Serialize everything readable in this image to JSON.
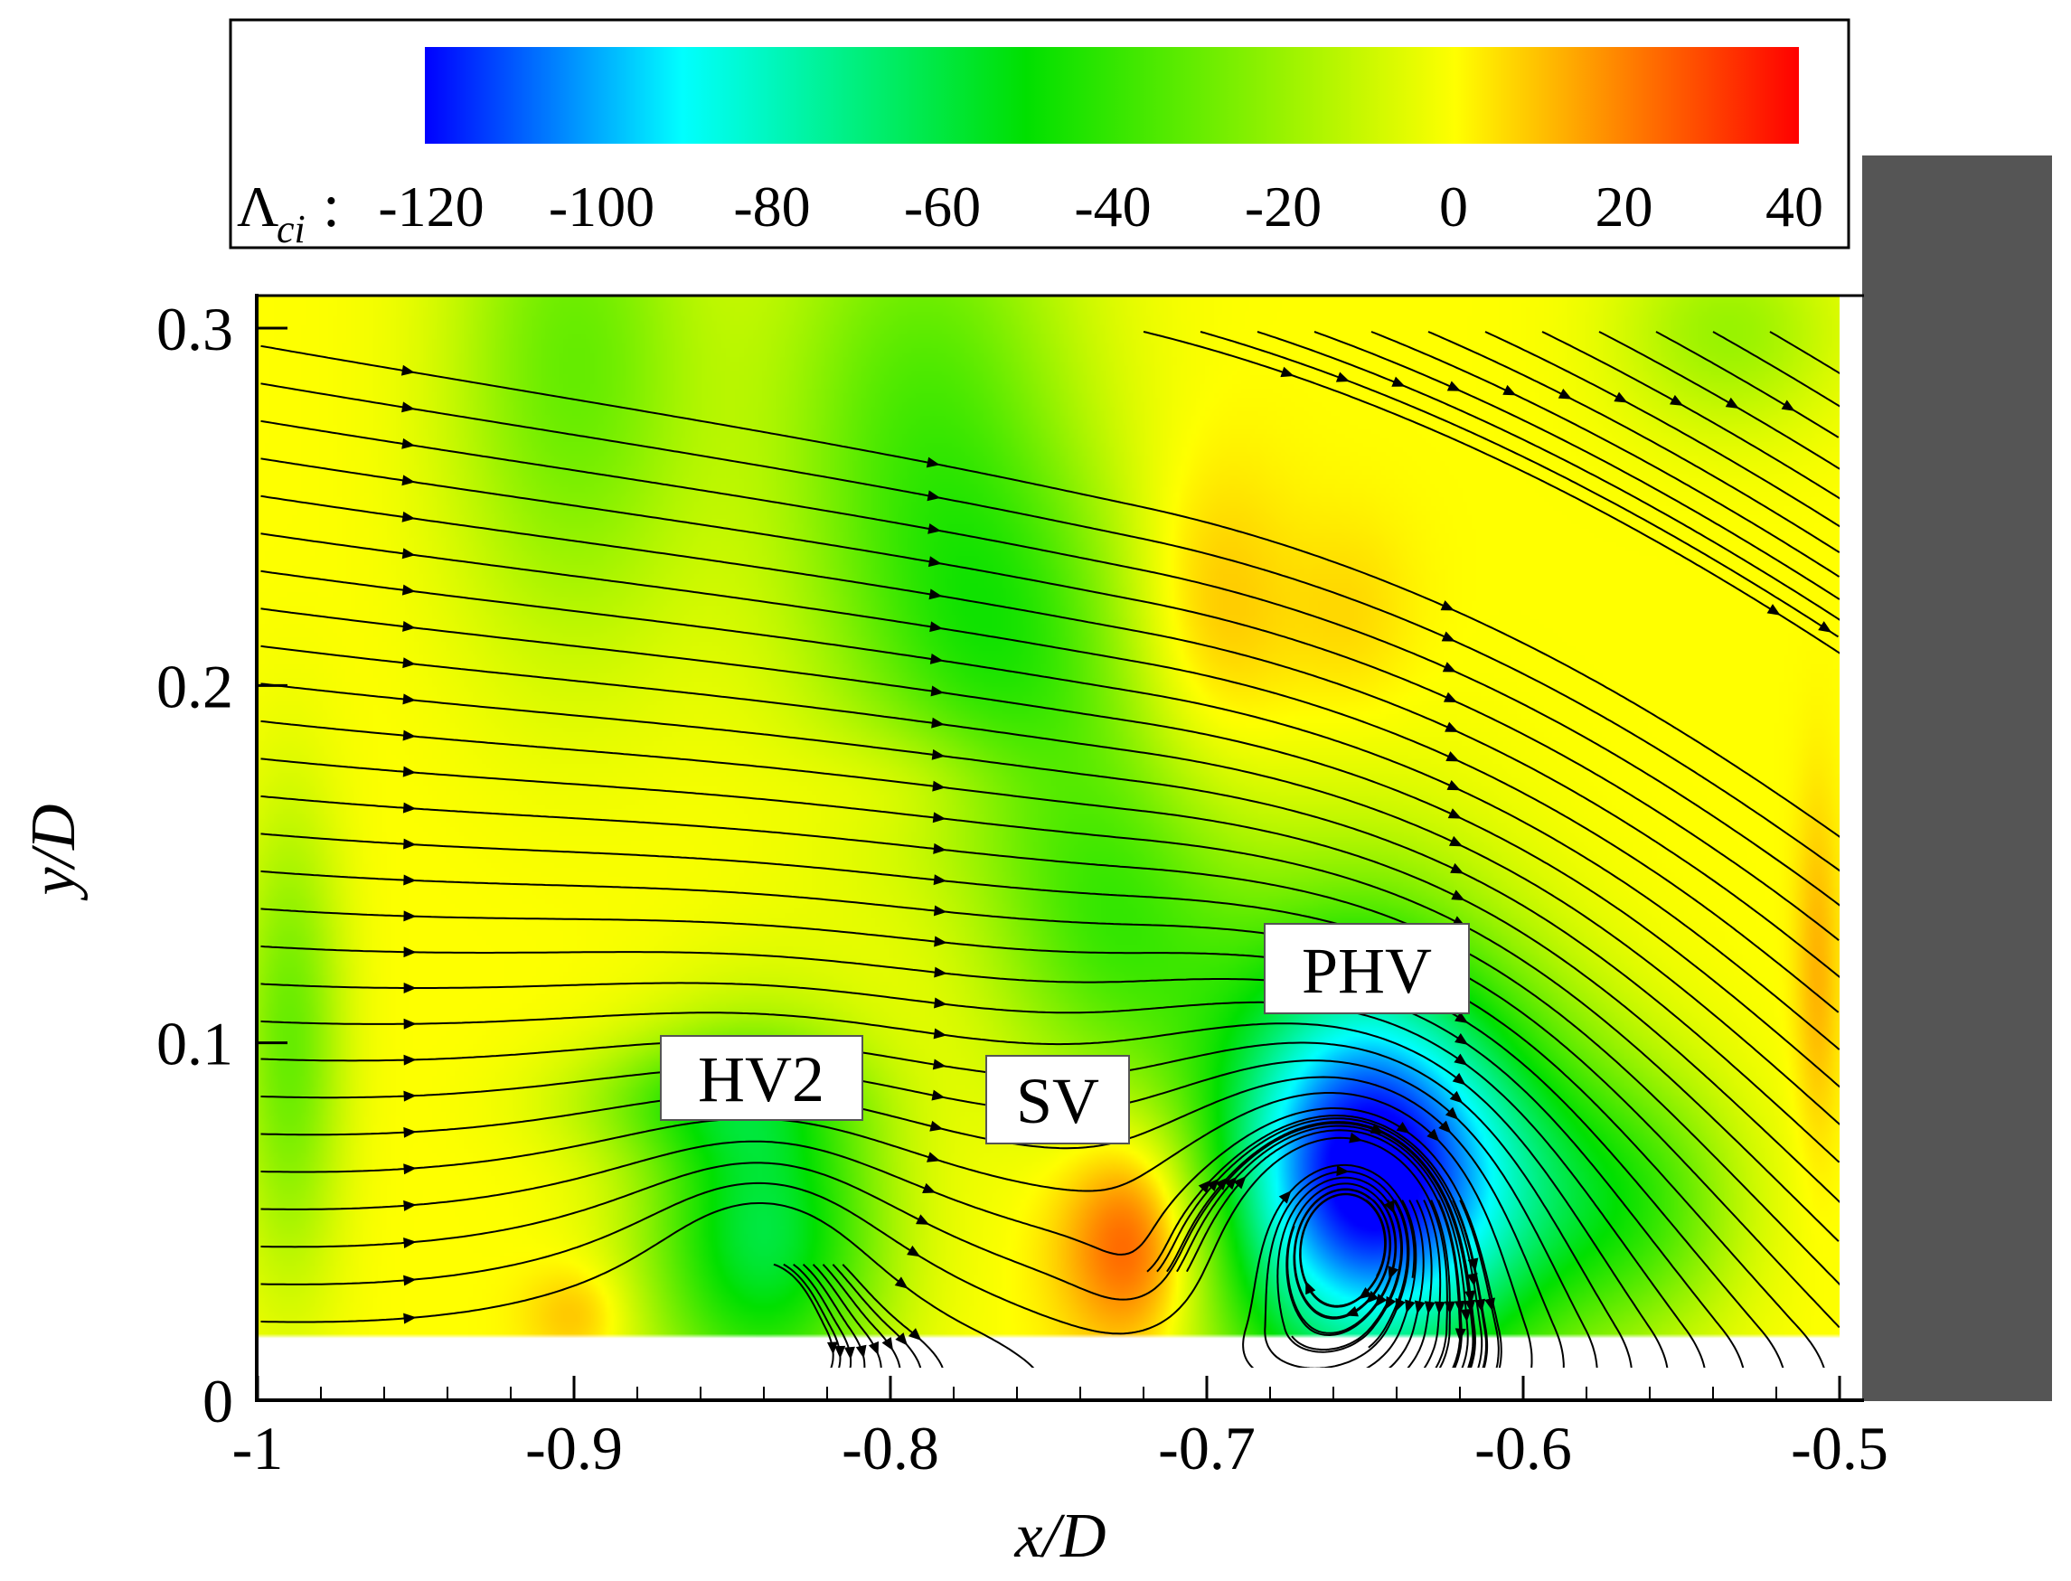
{
  "chart_data": {
    "type": "heatmap",
    "title": "",
    "xlabel": "x/D",
    "ylabel": "y/D",
    "xlim": [
      -1,
      -0.5
    ],
    "ylim": [
      0,
      0.3
    ],
    "x_ticks": [
      -1,
      -0.9,
      -0.8,
      -0.7,
      -0.6,
      -0.5
    ],
    "x_tick_labels": [
      "-1",
      "-0.9",
      "-0.8",
      "-0.7",
      "-0.6",
      "-0.5"
    ],
    "y_ticks": [
      0,
      0.1,
      0.2,
      0.3
    ],
    "y_tick_labels": [
      "0",
      "0.1",
      "0.2",
      "0.3"
    ],
    "colorbar": {
      "variable": "Λ",
      "subscript": "ci",
      "range": [
        -120,
        40
      ],
      "ticks": [
        -120,
        -100,
        -80,
        -60,
        -40,
        -20,
        0,
        20,
        40
      ],
      "tick_labels": [
        "-120",
        "-100",
        "-80",
        "-60",
        "-40",
        "-20",
        "0",
        "20",
        "40"
      ],
      "colors": [
        "#0000ff",
        "#00ffff",
        "#00e000",
        "#ffff00",
        "#ff0000"
      ]
    },
    "background_value": 0,
    "vortices": [
      {
        "label": "HV2",
        "x": -0.84,
        "y": 0.038,
        "swirl": -60,
        "radius": 0.035
      },
      {
        "label": "SV",
        "x": -0.722,
        "y": 0.036,
        "swirl": 35,
        "radius": 0.022
      },
      {
        "label": "PHV",
        "x": -0.652,
        "y": 0.056,
        "swirl": -120,
        "radius": 0.045
      }
    ],
    "scalar_blobs": [
      {
        "x": -0.9,
        "y": 0.28,
        "v": -30,
        "sx": 0.028,
        "sy": 0.055
      },
      {
        "x": -0.79,
        "y": 0.26,
        "v": -35,
        "sx": 0.035,
        "sy": 0.06
      },
      {
        "x": -0.76,
        "y": 0.2,
        "v": -28,
        "sx": 0.03,
        "sy": 0.035
      },
      {
        "x": -0.73,
        "y": 0.125,
        "v": -35,
        "sx": 0.028,
        "sy": 0.035
      },
      {
        "x": -0.99,
        "y": 0.09,
        "v": -30,
        "sx": 0.012,
        "sy": 0.045
      },
      {
        "x": -0.86,
        "y": 0.075,
        "v": -25,
        "sx": 0.03,
        "sy": 0.012
      },
      {
        "x": -0.6,
        "y": 0.05,
        "v": -35,
        "sx": 0.03,
        "sy": 0.035
      },
      {
        "x": -0.56,
        "y": 0.045,
        "v": -25,
        "sx": 0.022,
        "sy": 0.025
      },
      {
        "x": -0.535,
        "y": 0.29,
        "v": -20,
        "sx": 0.025,
        "sy": 0.02
      },
      {
        "x": -0.7,
        "y": 0.21,
        "v": 12,
        "sx": 0.018,
        "sy": 0.03
      },
      {
        "x": -0.79,
        "y": 0.165,
        "v": 9,
        "sx": 0.025,
        "sy": 0.012
      },
      {
        "x": -0.655,
        "y": 0.21,
        "v": 6,
        "sx": 0.015,
        "sy": 0.02
      },
      {
        "x": -0.507,
        "y": 0.11,
        "v": 12,
        "sx": 0.005,
        "sy": 0.035
      },
      {
        "x": -0.898,
        "y": 0.015,
        "v": 12,
        "sx": 0.012,
        "sy": 0.01
      }
    ],
    "solid_region": {
      "x_start": -0.5,
      "x_end": -0.44,
      "y_top": 0.337,
      "color": "#555555"
    },
    "annotations": [
      "HV2",
      "SV",
      "PHV"
    ]
  }
}
